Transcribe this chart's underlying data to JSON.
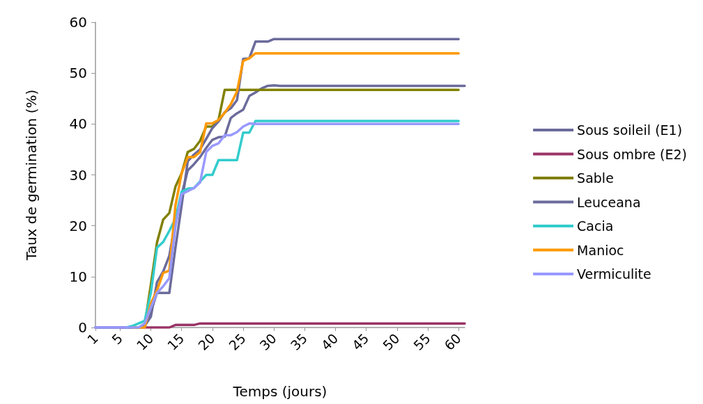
{
  "chart_data": {
    "type": "line",
    "xlabel": "Temps (jours)",
    "ylabel": "Taux de germination (%)",
    "x": [
      1,
      2,
      3,
      4,
      5,
      6,
      7,
      8,
      9,
      10,
      11,
      12,
      13,
      14,
      15,
      16,
      17,
      18,
      19,
      20,
      21,
      22,
      23,
      24,
      25,
      26,
      27,
      28,
      29,
      30,
      31,
      32,
      33,
      34,
      35,
      36,
      37,
      38,
      39,
      40,
      41,
      42,
      43,
      44,
      45,
      46,
      47,
      48,
      49,
      50,
      51,
      52,
      53,
      54,
      55,
      56,
      57,
      58,
      59,
      60,
      61
    ],
    "xlim": [
      1,
      61
    ],
    "xticks": [
      1,
      5,
      10,
      15,
      20,
      25,
      30,
      35,
      40,
      45,
      50,
      55,
      60
    ],
    "ylim": [
      0,
      60
    ],
    "yticks": [
      0,
      10,
      20,
      30,
      40,
      50,
      60
    ],
    "grid": false,
    "legend": "right",
    "marker": "none",
    "line_style": "solid",
    "series": [
      {
        "name": "Sous soileil (E1)",
        "color": "#6b6b9b",
        "values": [
          0,
          0,
          0,
          0,
          0,
          0,
          0,
          0,
          0.3,
          2.1,
          8.9,
          11,
          14.1,
          20.9,
          26.1,
          30.9,
          32.1,
          33.5,
          35.3,
          36.9,
          37.4,
          37.5,
          41.2,
          42.1,
          42.8,
          45.5,
          46.2,
          47,
          47.5,
          47.6,
          47.5,
          47.5,
          47.5,
          47.5,
          47.5,
          47.5,
          47.5,
          47.5,
          47.5,
          47.5,
          47.5,
          47.5,
          47.5,
          47.5,
          47.5,
          47.5,
          47.5,
          47.5,
          47.5,
          47.5,
          47.5,
          47.5,
          47.5,
          47.5,
          47.5,
          47.5,
          47.5,
          47.5,
          47.5,
          47.5,
          47.5
        ]
      },
      {
        "name": "Sous ombre (E2)",
        "color": "#993366",
        "values": [
          null,
          null,
          null,
          null,
          0,
          0,
          0,
          0,
          0,
          0,
          0,
          0,
          0,
          0.5,
          0.5,
          0.5,
          0.5,
          0.8,
          0.8,
          0.8,
          0.8,
          0.8,
          0.8,
          0.8,
          0.8,
          0.8,
          0.8,
          0.8,
          0.8,
          0.8,
          0.8,
          0.8,
          0.8,
          0.8,
          0.8,
          0.8,
          0.8,
          0.8,
          0.8,
          0.8,
          0.8,
          0.8,
          0.8,
          0.8,
          0.8,
          0.8,
          0.8,
          0.8,
          0.8,
          0.8,
          0.8,
          0.8,
          0.8,
          0.8,
          0.8,
          0.8,
          0.8,
          0.8,
          0.8,
          0.8,
          0.8
        ]
      },
      {
        "name": "Sable",
        "color": "#808000",
        "values": [
          null,
          null,
          null,
          null,
          null,
          null,
          null,
          0,
          0.5,
          8.4,
          16.7,
          21.2,
          22.5,
          27.7,
          30.3,
          34.5,
          35.1,
          36.7,
          39.5,
          39.5,
          40.8,
          46.7,
          46.7,
          46.7,
          46.7,
          46.7,
          46.7,
          46.7,
          46.7,
          46.7,
          46.7,
          46.7,
          46.7,
          46.7,
          46.7,
          46.7,
          46.7,
          46.7,
          46.7,
          46.7,
          46.7,
          46.7,
          46.7,
          46.7,
          46.7,
          46.7,
          46.7,
          46.7,
          46.7,
          46.7,
          46.7,
          46.7,
          46.7,
          46.7,
          46.7,
          46.7,
          46.7,
          46.7,
          46.7,
          46.7,
          null
        ]
      },
      {
        "name": "Leuceana",
        "color": "#6b6b9b",
        "values": [
          0,
          0,
          0,
          0,
          0,
          0,
          0,
          0,
          0.5,
          3.1,
          6.8,
          6.8,
          6.8,
          15.7,
          24,
          32.7,
          34,
          35,
          37.1,
          39.2,
          40.5,
          42.3,
          43.1,
          44.7,
          52.8,
          52.9,
          56.2,
          56.2,
          56.2,
          56.7,
          56.7,
          56.7,
          56.7,
          56.7,
          56.7,
          56.7,
          56.7,
          56.7,
          56.7,
          56.7,
          56.7,
          56.7,
          56.7,
          56.7,
          56.7,
          56.7,
          56.7,
          56.7,
          56.7,
          56.7,
          56.7,
          56.7,
          56.7,
          56.7,
          56.7,
          56.7,
          56.7,
          56.7,
          56.7,
          56.7,
          null
        ]
      },
      {
        "name": "Cacia",
        "color": "#33cccc",
        "values": [
          null,
          null,
          null,
          null,
          null,
          0,
          0.3,
          0.8,
          1.3,
          6.8,
          15.7,
          16.8,
          19,
          21.4,
          26.7,
          27.3,
          27.4,
          28.7,
          30,
          30,
          32.9,
          32.9,
          32.9,
          32.9,
          38.3,
          38.3,
          40.6,
          40.6,
          40.6,
          40.6,
          40.6,
          40.6,
          40.6,
          40.6,
          40.6,
          40.6,
          40.6,
          40.6,
          40.6,
          40.6,
          40.6,
          40.6,
          40.6,
          40.6,
          40.6,
          40.6,
          40.6,
          40.6,
          40.6,
          40.6,
          40.6,
          40.6,
          40.6,
          40.6,
          40.6,
          40.6,
          40.6,
          40.6,
          40.6,
          40.6,
          null
        ]
      },
      {
        "name": "Manioc",
        "color": "#ff9900",
        "values": [
          null,
          null,
          null,
          null,
          null,
          null,
          0,
          0,
          0,
          4.7,
          7.3,
          10.7,
          11.2,
          24,
          30.3,
          33.5,
          33.5,
          34.5,
          40.1,
          40.1,
          40.8,
          42.2,
          43.9,
          46.4,
          52.4,
          52.9,
          53.9,
          53.9,
          53.9,
          53.9,
          53.9,
          53.9,
          53.9,
          53.9,
          53.9,
          53.9,
          53.9,
          53.9,
          53.9,
          53.9,
          53.9,
          53.9,
          53.9,
          53.9,
          53.9,
          53.9,
          53.9,
          53.9,
          53.9,
          53.9,
          53.9,
          53.9,
          53.9,
          53.9,
          53.9,
          53.9,
          53.9,
          53.9,
          53.9,
          53.9,
          null
        ]
      },
      {
        "name": "Vermiculite",
        "color": "#9999ff",
        "values": [
          0,
          0,
          0,
          0,
          0,
          0,
          0,
          0,
          0.8,
          3.9,
          6.8,
          8.1,
          9.7,
          19.8,
          26.2,
          26.8,
          27.4,
          28.5,
          34.5,
          35.7,
          36.2,
          37.8,
          37.8,
          38.4,
          39.5,
          40.1,
          40,
          40,
          40,
          40,
          40,
          40,
          40,
          40,
          40,
          40,
          40,
          40,
          40,
          40,
          40,
          40,
          40,
          40,
          40,
          40,
          40,
          40,
          40,
          40,
          40,
          40,
          40,
          40,
          40,
          40,
          40,
          40,
          40,
          40,
          null
        ]
      }
    ]
  }
}
